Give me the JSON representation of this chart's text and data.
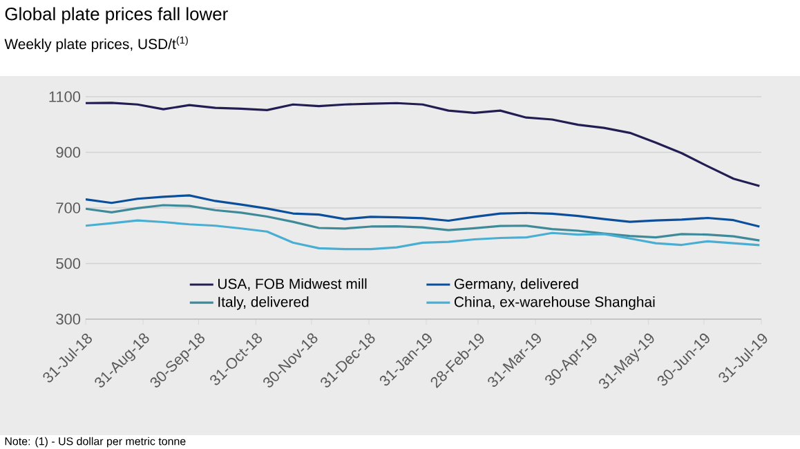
{
  "chart_data": {
    "type": "line",
    "title": "Global plate prices fall lower",
    "subtitle": "Weekly plate prices, USD/t$^{(1)}$",
    "annotations": [
      "Note: (1) - US dollar per metric tonne"
    ],
    "x": [
      "2018-07-31",
      "2018-08-14",
      "2018-08-28",
      "2018-09-11",
      "2018-09-25",
      "2018-10-09",
      "2018-10-23",
      "2018-11-06",
      "2018-11-20",
      "2018-12-04",
      "2018-12-18",
      "2019-01-01",
      "2019-01-15",
      "2019-01-29",
      "2019-02-12",
      "2019-02-26",
      "2019-03-12",
      "2019-03-26",
      "2019-04-09",
      "2019-04-23",
      "2019-05-07",
      "2019-05-21",
      "2019-06-04",
      "2019-06-18",
      "2019-07-02",
      "2019-07-16",
      "2019-07-30"
    ],
    "series": [
      {
        "name": "USA, FOB Midwest mill",
        "color": "#221d52",
        "values": [
          1077,
          1078,
          1072,
          1055,
          1070,
          1060,
          1057,
          1052,
          1072,
          1066,
          1072,
          1075,
          1077,
          1072,
          1050,
          1042,
          1050,
          1025,
          1018,
          999,
          988,
          970,
          935,
          897,
          850,
          805,
          779
        ]
      },
      {
        "name": "Germany, delivered",
        "color": "#0b4f9c",
        "values": [
          731,
          718,
          733,
          740,
          745,
          725,
          712,
          698,
          680,
          676,
          660,
          668,
          666,
          663,
          654,
          668,
          680,
          682,
          679,
          671,
          660,
          650,
          655,
          658,
          664,
          656,
          633
        ]
      },
      {
        "name": "Italy, delivered",
        "color": "#3f8a98",
        "values": [
          697,
          684,
          699,
          710,
          707,
          692,
          683,
          669,
          650,
          628,
          626,
          633,
          634,
          630,
          620,
          627,
          635,
          636,
          624,
          618,
          608,
          599,
          594,
          606,
          604,
          598,
          583
        ]
      },
      {
        "name": "China, ex-warehouse Shanghai",
        "color": "#4aaed3",
        "values": [
          636,
          645,
          655,
          649,
          641,
          636,
          626,
          615,
          575,
          555,
          552,
          552,
          558,
          575,
          578,
          587,
          592,
          594,
          610,
          604,
          606,
          590,
          573,
          567,
          580,
          573,
          566
        ]
      }
    ],
    "xlim": [
      "2018-07-31",
      "2019-07-31"
    ],
    "xticks": [
      {
        "value": "2018-07-31",
        "label": "31-Jul-18"
      },
      {
        "value": "2018-08-31",
        "label": "31-Aug-18"
      },
      {
        "value": "2018-09-30",
        "label": "30-Sep-18"
      },
      {
        "value": "2018-10-31",
        "label": "31-Oct-18"
      },
      {
        "value": "2018-11-30",
        "label": "30-Nov-18"
      },
      {
        "value": "2018-12-31",
        "label": "31-Dec-18"
      },
      {
        "value": "2019-01-31",
        "label": "31-Jan-19"
      },
      {
        "value": "2019-02-28",
        "label": "28-Feb-19"
      },
      {
        "value": "2019-03-31",
        "label": "31-Mar-19"
      },
      {
        "value": "2019-04-30",
        "label": "30-Apr-19"
      },
      {
        "value": "2019-05-31",
        "label": "31-May-19"
      },
      {
        "value": "2019-06-30",
        "label": "30-Jun-19"
      },
      {
        "value": "2019-07-31",
        "label": "31-Jul-19"
      }
    ],
    "ylim": [
      300,
      1100
    ],
    "yticks": [
      300,
      500,
      700,
      900,
      1100
    ],
    "grid": "y",
    "legend": "bottom",
    "marker": "none",
    "line_style": "solid"
  }
}
